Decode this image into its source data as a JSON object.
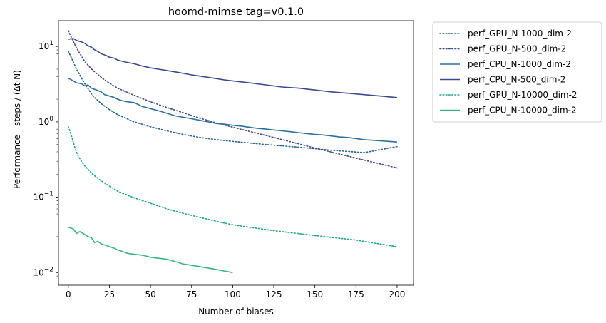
{
  "chart_data": {
    "type": "line",
    "title": "hoomd-mimse    tag=v0.1.0",
    "xlabel": "Number of biases",
    "ylabel": "Performance",
    "ylabel_unit": "steps / (Δt·N)",
    "xlim": [
      -6,
      210
    ],
    "ylim": [
      0.0068,
      22
    ],
    "yscale": "log",
    "grid": false,
    "legend_position": "outside-right",
    "x_ticks": [
      0,
      25,
      50,
      75,
      100,
      125,
      150,
      175,
      200
    ],
    "x_tick_labels": [
      "0",
      "25",
      "50",
      "75",
      "100",
      "125",
      "150",
      "175",
      "200"
    ],
    "y_ticks": [
      0.01,
      0.1,
      1,
      10
    ],
    "series": [
      {
        "name": "perf_GPU_N-1000_dim-2",
        "color": "#27638e",
        "linestyle": "dotted",
        "points": [
          [
            0,
            8.7
          ],
          [
            2,
            7.0
          ],
          [
            5,
            5.0
          ],
          [
            10,
            3.2
          ],
          [
            15,
            2.2
          ],
          [
            20,
            1.75
          ],
          [
            25,
            1.45
          ],
          [
            30,
            1.25
          ],
          [
            40,
            1.0
          ],
          [
            50,
            0.86
          ],
          [
            60,
            0.76
          ],
          [
            70,
            0.68
          ],
          [
            80,
            0.62
          ],
          [
            90,
            0.58
          ],
          [
            100,
            0.55
          ],
          [
            120,
            0.5
          ],
          [
            140,
            0.46
          ],
          [
            160,
            0.42
          ],
          [
            180,
            0.39
          ],
          [
            200,
            0.47
          ]
        ]
      },
      {
        "name": "perf_GPU_N-500_dim-2",
        "color": "#3e4989",
        "linestyle": "dotted",
        "points": [
          [
            0,
            16.2
          ],
          [
            2,
            13.0
          ],
          [
            5,
            9.5
          ],
          [
            10,
            6.3
          ],
          [
            15,
            4.8
          ],
          [
            20,
            3.9
          ],
          [
            25,
            3.25
          ],
          [
            30,
            2.8
          ],
          [
            40,
            2.25
          ],
          [
            50,
            1.85
          ],
          [
            60,
            1.55
          ],
          [
            70,
            1.32
          ],
          [
            80,
            1.12
          ],
          [
            90,
            0.97
          ],
          [
            100,
            0.85
          ],
          [
            125,
            0.62
          ],
          [
            150,
            0.45
          ],
          [
            175,
            0.33
          ],
          [
            200,
            0.245
          ]
        ]
      },
      {
        "name": "perf_CPU_N-1000_dim-2",
        "color": "#2c6f9b",
        "linestyle": "solid",
        "points": [
          [
            0,
            3.8
          ],
          [
            3,
            3.5
          ],
          [
            5,
            3.3
          ],
          [
            8,
            3.2
          ],
          [
            10,
            3.0
          ],
          [
            12,
            3.1
          ],
          [
            14,
            2.8
          ],
          [
            16,
            2.7
          ],
          [
            18,
            2.6
          ],
          [
            20,
            2.5
          ],
          [
            22,
            2.3
          ],
          [
            25,
            2.2
          ],
          [
            28,
            2.1
          ],
          [
            30,
            2.0
          ],
          [
            33,
            1.9
          ],
          [
            36,
            1.85
          ],
          [
            40,
            1.8
          ],
          [
            45,
            1.6
          ],
          [
            50,
            1.5
          ],
          [
            55,
            1.4
          ],
          [
            60,
            1.3
          ],
          [
            65,
            1.2
          ],
          [
            70,
            1.15
          ],
          [
            75,
            1.1
          ],
          [
            80,
            1.05
          ],
          [
            85,
            1.0
          ],
          [
            90,
            0.95
          ],
          [
            95,
            0.93
          ],
          [
            100,
            0.9
          ],
          [
            105,
            0.88
          ],
          [
            110,
            0.85
          ],
          [
            115,
            0.82
          ],
          [
            120,
            0.8
          ],
          [
            125,
            0.78
          ],
          [
            130,
            0.76
          ],
          [
            135,
            0.74
          ],
          [
            140,
            0.72
          ],
          [
            145,
            0.7
          ],
          [
            150,
            0.68
          ],
          [
            155,
            0.67
          ],
          [
            160,
            0.65
          ],
          [
            165,
            0.63
          ],
          [
            170,
            0.62
          ],
          [
            175,
            0.6
          ],
          [
            180,
            0.58
          ],
          [
            185,
            0.57
          ],
          [
            190,
            0.56
          ],
          [
            195,
            0.55
          ],
          [
            200,
            0.54
          ]
        ]
      },
      {
        "name": "perf_CPU_N-500_dim-2",
        "color": "#3b4a8c",
        "linestyle": "solid",
        "points": [
          [
            0,
            12.5
          ],
          [
            3,
            12.8
          ],
          [
            5,
            12.0
          ],
          [
            8,
            11.5
          ],
          [
            10,
            11.0
          ],
          [
            12,
            10.2
          ],
          [
            14,
            9.8
          ],
          [
            16,
            9.0
          ],
          [
            18,
            8.6
          ],
          [
            20,
            8.0
          ],
          [
            23,
            7.6
          ],
          [
            25,
            7.2
          ],
          [
            28,
            7.0
          ],
          [
            30,
            6.6
          ],
          [
            35,
            6.2
          ],
          [
            40,
            5.9
          ],
          [
            45,
            5.5
          ],
          [
            50,
            5.2
          ],
          [
            55,
            5.0
          ],
          [
            60,
            4.8
          ],
          [
            65,
            4.6
          ],
          [
            70,
            4.4
          ],
          [
            75,
            4.2
          ],
          [
            80,
            4.05
          ],
          [
            85,
            3.9
          ],
          [
            90,
            3.75
          ],
          [
            95,
            3.6
          ],
          [
            100,
            3.5
          ],
          [
            110,
            3.3
          ],
          [
            120,
            3.1
          ],
          [
            130,
            2.9
          ],
          [
            140,
            2.8
          ],
          [
            150,
            2.65
          ],
          [
            160,
            2.5
          ],
          [
            170,
            2.4
          ],
          [
            180,
            2.3
          ],
          [
            190,
            2.2
          ],
          [
            200,
            2.1
          ]
        ]
      },
      {
        "name": "perf_GPU_N-10000_dim-2",
        "color": "#1fa187",
        "linestyle": "dotted",
        "points": [
          [
            0,
            0.86
          ],
          [
            2,
            0.65
          ],
          [
            4,
            0.45
          ],
          [
            6,
            0.35
          ],
          [
            8,
            0.3
          ],
          [
            10,
            0.26
          ],
          [
            15,
            0.2
          ],
          [
            20,
            0.165
          ],
          [
            25,
            0.14
          ],
          [
            30,
            0.12
          ],
          [
            40,
            0.098
          ],
          [
            50,
            0.083
          ],
          [
            60,
            0.07
          ],
          [
            70,
            0.061
          ],
          [
            80,
            0.054
          ],
          [
            90,
            0.048
          ],
          [
            100,
            0.043
          ],
          [
            125,
            0.036
          ],
          [
            150,
            0.031
          ],
          [
            175,
            0.027
          ],
          [
            200,
            0.022
          ]
        ]
      },
      {
        "name": "perf_CPU_N-10000_dim-2",
        "color": "#3bb57a",
        "linestyle": "solid",
        "points": [
          [
            0,
            0.04
          ],
          [
            3,
            0.038
          ],
          [
            5,
            0.033
          ],
          [
            7,
            0.035
          ],
          [
            10,
            0.032
          ],
          [
            12,
            0.03
          ],
          [
            14,
            0.029
          ],
          [
            16,
            0.025
          ],
          [
            18,
            0.026
          ],
          [
            20,
            0.024
          ],
          [
            23,
            0.023
          ],
          [
            25,
            0.022
          ],
          [
            28,
            0.021
          ],
          [
            30,
            0.02
          ],
          [
            33,
            0.019
          ],
          [
            36,
            0.018
          ],
          [
            40,
            0.0175
          ],
          [
            45,
            0.017
          ],
          [
            50,
            0.016
          ],
          [
            55,
            0.0155
          ],
          [
            60,
            0.015
          ],
          [
            65,
            0.014
          ],
          [
            70,
            0.013
          ],
          [
            75,
            0.0125
          ],
          [
            80,
            0.012
          ],
          [
            85,
            0.0115
          ],
          [
            90,
            0.011
          ],
          [
            95,
            0.0105
          ],
          [
            100,
            0.01
          ]
        ]
      }
    ]
  }
}
